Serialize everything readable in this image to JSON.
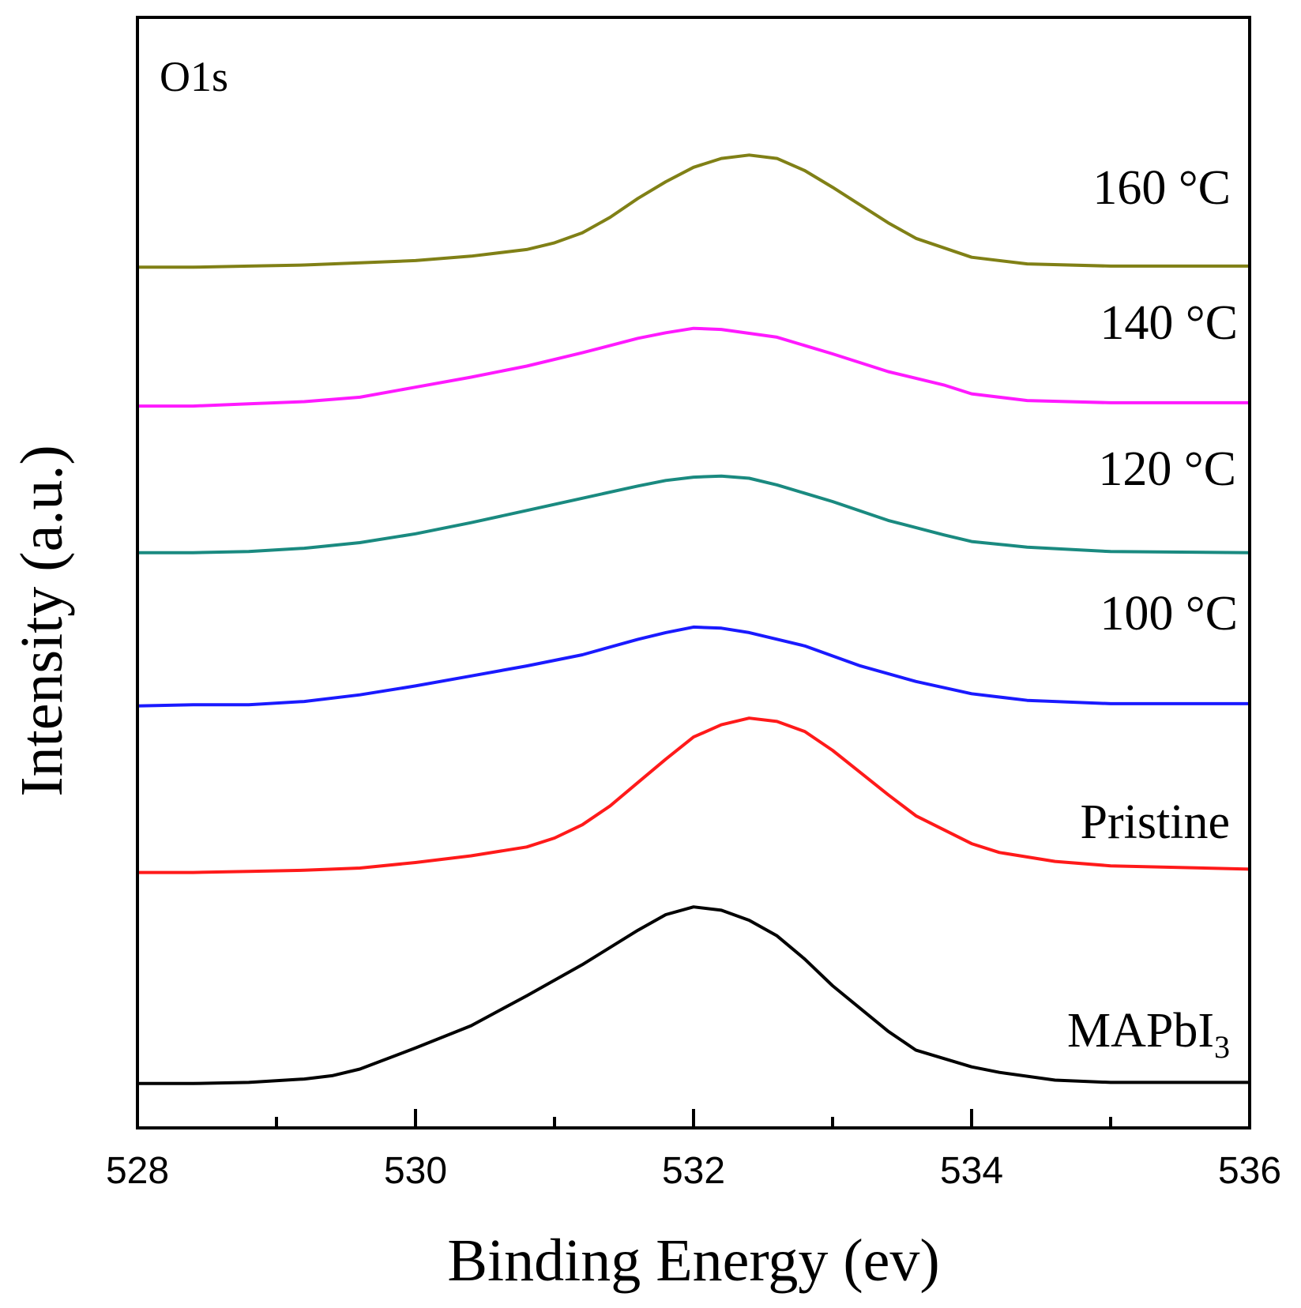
{
  "chart_data": {
    "type": "line",
    "panel_label": "O1s",
    "xlabel": "Binding Energy (ev)",
    "ylabel": "Intensity (a.u.)",
    "xlim": [
      528,
      536
    ],
    "ylim": [
      0,
      1
    ],
    "x_ticks": [
      528,
      530,
      532,
      534,
      536
    ],
    "x_tick_labels": [
      "528",
      "530",
      "532",
      "534",
      "536"
    ],
    "x_minor_ticks": [
      529,
      531,
      533,
      535
    ],
    "y_ticks_shown": false,
    "grid": false,
    "legend": "inline labels at right",
    "stacked": true,
    "series": [
      {
        "id": "mapbi3",
        "name": "MAPbI",
        "name_subscript": "3",
        "color": "#000000",
        "x": [
          528.0,
          528.4,
          528.8,
          529.2,
          529.4,
          529.6,
          530.0,
          530.4,
          530.8,
          531.2,
          531.6,
          531.8,
          532.0,
          532.2,
          532.4,
          532.6,
          532.8,
          533.0,
          533.4,
          533.6,
          534.0,
          534.2,
          534.6,
          535.0,
          535.4,
          536.0
        ],
        "y": [
          0.04,
          0.04,
          0.041,
          0.044,
          0.047,
          0.053,
          0.072,
          0.092,
          0.119,
          0.147,
          0.178,
          0.192,
          0.199,
          0.196,
          0.187,
          0.173,
          0.152,
          0.128,
          0.087,
          0.07,
          0.055,
          0.05,
          0.043,
          0.041,
          0.041,
          0.041
        ]
      },
      {
        "id": "pristine",
        "name": "Pristine",
        "color": "#ff1a1a",
        "x": [
          528.0,
          528.4,
          528.8,
          529.2,
          529.6,
          530.0,
          530.4,
          530.8,
          531.0,
          531.2,
          531.4,
          531.6,
          531.8,
          532.0,
          532.2,
          532.4,
          532.6,
          532.8,
          533.0,
          533.2,
          533.4,
          533.6,
          534.0,
          534.2,
          534.6,
          535.0,
          536.0
        ],
        "y": [
          0.23,
          0.23,
          0.231,
          0.232,
          0.234,
          0.239,
          0.245,
          0.253,
          0.261,
          0.273,
          0.29,
          0.311,
          0.332,
          0.352,
          0.363,
          0.369,
          0.366,
          0.357,
          0.34,
          0.32,
          0.3,
          0.281,
          0.256,
          0.248,
          0.24,
          0.236,
          0.233
        ]
      },
      {
        "id": "100c",
        "name": "100 °C",
        "color": "#1a1aff",
        "x": [
          528.0,
          528.4,
          528.8,
          529.2,
          529.6,
          530.0,
          530.4,
          530.8,
          531.2,
          531.6,
          531.8,
          532.0,
          532.2,
          532.4,
          532.8,
          533.2,
          533.6,
          534.0,
          534.4,
          535.0,
          536.0
        ],
        "y": [
          0.38,
          0.381,
          0.381,
          0.384,
          0.39,
          0.398,
          0.407,
          0.416,
          0.426,
          0.44,
          0.446,
          0.451,
          0.45,
          0.446,
          0.434,
          0.416,
          0.402,
          0.391,
          0.385,
          0.382,
          0.382
        ]
      },
      {
        "id": "120c",
        "name": "120 °C",
        "color": "#1a8a80",
        "x": [
          528.0,
          528.4,
          528.8,
          529.2,
          529.6,
          530.0,
          530.4,
          530.8,
          531.2,
          531.6,
          531.8,
          532.0,
          532.2,
          532.4,
          532.6,
          533.0,
          533.4,
          533.8,
          534.0,
          534.4,
          535.0,
          536.0
        ],
        "y": [
          0.518,
          0.518,
          0.519,
          0.522,
          0.527,
          0.535,
          0.545,
          0.556,
          0.567,
          0.578,
          0.583,
          0.586,
          0.587,
          0.585,
          0.579,
          0.564,
          0.547,
          0.534,
          0.528,
          0.523,
          0.519,
          0.518
        ]
      },
      {
        "id": "140c",
        "name": "140 °C",
        "color": "#ff1aff",
        "x": [
          528.0,
          528.4,
          528.8,
          529.2,
          529.6,
          530.0,
          530.4,
          530.8,
          531.2,
          531.6,
          531.8,
          532.0,
          532.2,
          532.6,
          533.0,
          533.4,
          533.8,
          534.0,
          534.4,
          535.0,
          536.0
        ],
        "y": [
          0.65,
          0.65,
          0.652,
          0.654,
          0.658,
          0.667,
          0.676,
          0.686,
          0.698,
          0.711,
          0.716,
          0.72,
          0.719,
          0.712,
          0.697,
          0.681,
          0.669,
          0.661,
          0.655,
          0.653,
          0.653
        ]
      },
      {
        "id": "160c",
        "name": "160 °C",
        "color": "#808016",
        "x": [
          528.0,
          528.4,
          528.8,
          529.2,
          529.6,
          530.0,
          530.4,
          530.8,
          531.0,
          531.2,
          531.4,
          531.6,
          531.8,
          532.0,
          532.2,
          532.4,
          532.6,
          532.8,
          533.0,
          533.2,
          533.4,
          533.6,
          534.0,
          534.4,
          535.0,
          536.0
        ],
        "y": [
          0.775,
          0.775,
          0.776,
          0.777,
          0.779,
          0.781,
          0.785,
          0.791,
          0.797,
          0.806,
          0.82,
          0.837,
          0.852,
          0.865,
          0.873,
          0.876,
          0.873,
          0.862,
          0.847,
          0.831,
          0.815,
          0.801,
          0.784,
          0.778,
          0.776,
          0.776
        ]
      }
    ]
  }
}
